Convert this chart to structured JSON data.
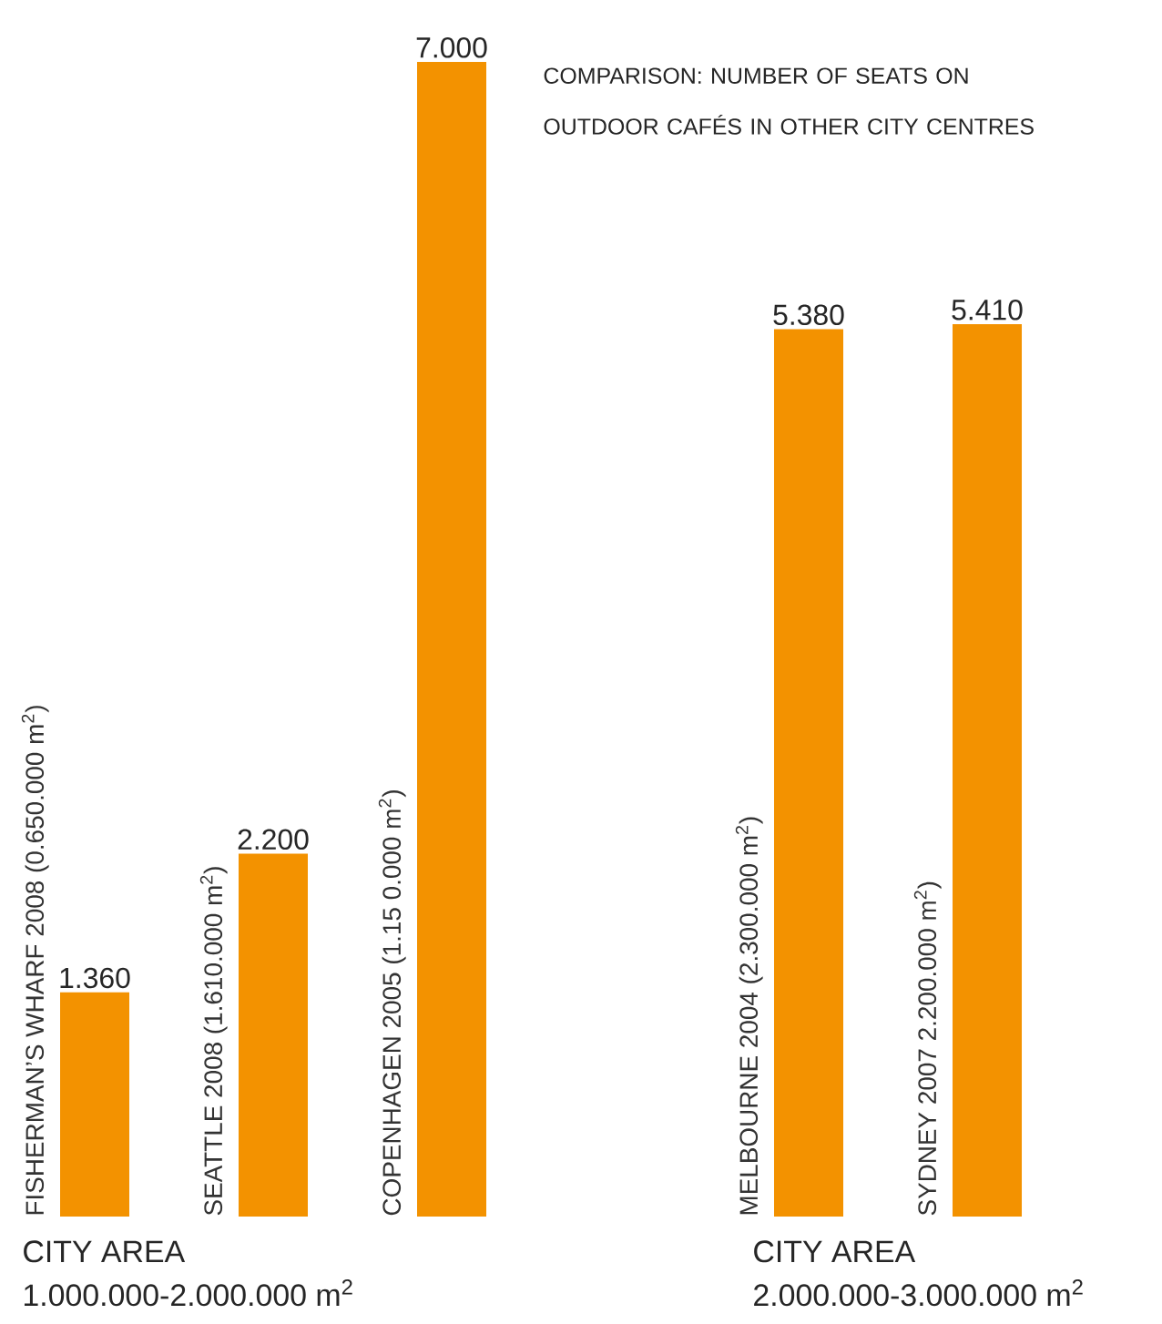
{
  "chart_data": {
    "type": "bar",
    "title": "COMPARISON: NUMBER OF SEATS ON OUTDOOR CAFÉS IN OTHER CITY CENTRES",
    "categories": [
      "FISHERMAN’S WHARF 2008 (0.650.000 m$^{2}$)",
      "SEATTLE 2008 (1.610.000 m$^{2}$)",
      "COPENHAGEN 2005 (1.15 0.000 m$^{2}$)",
      null,
      "MELBOURNE 2004 (2.300.000 m$^{2}$)",
      "SYDNEY 2007 2.200.000 m$^{2}$)"
    ],
    "values": [
      1360,
      2200,
      7000,
      null,
      5380,
      5410
    ],
    "value_labels": [
      "1.360",
      "2.200",
      "7.000",
      null,
      "5.380",
      "5.410"
    ],
    "color": "#f39200",
    "annotations": [
      "CITY AREA",
      "1.000.000-2.000.000 m$^{2}$",
      "CITY AREA",
      "2.000.000-3.000.000 m$^{2}$"
    ]
  }
}
